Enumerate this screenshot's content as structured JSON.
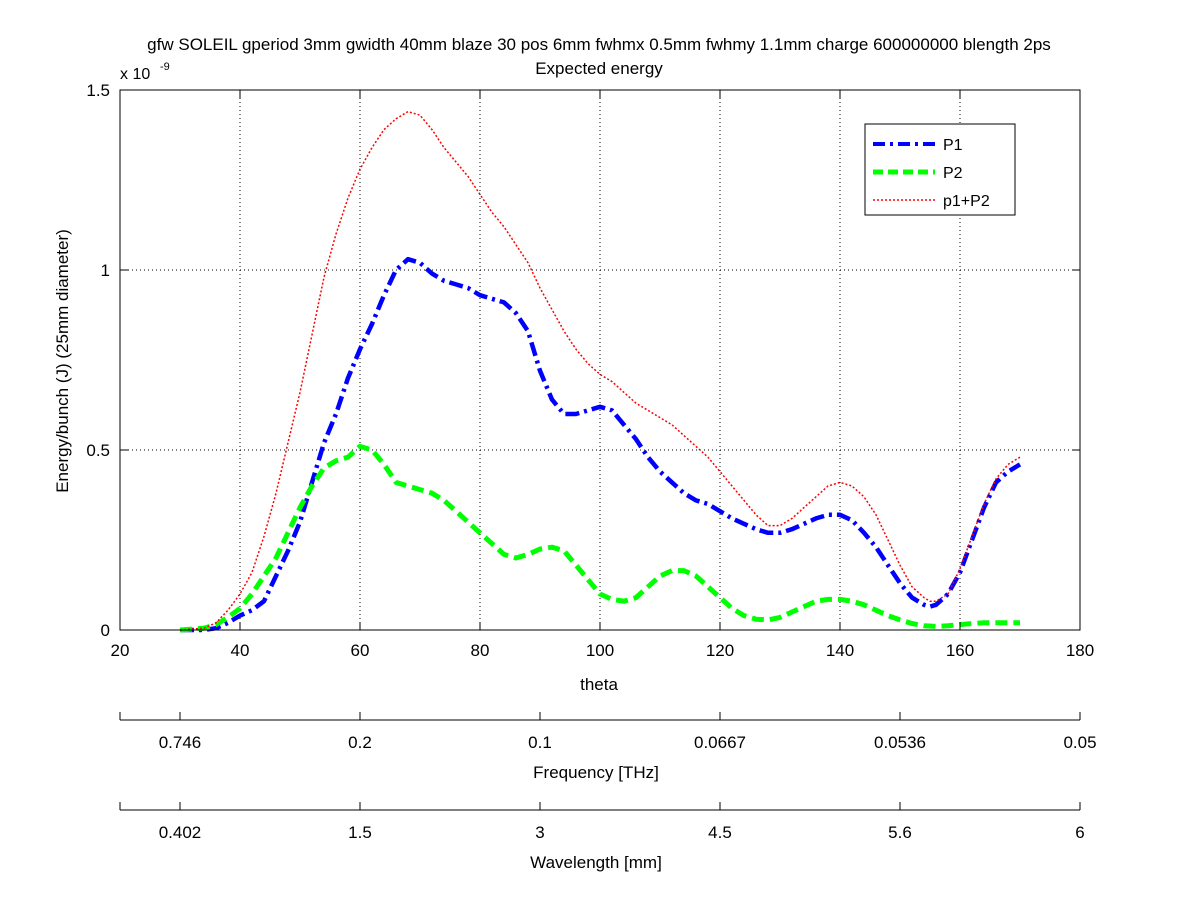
{
  "chart_data": {
    "type": "line",
    "title": "gfw SOLEIL gperiod 3mm gwidth 40mm blaze 30 pos 6mm fwhmx 0.5mm fwhmy 1.1mm charge 600000000 blength 2ps",
    "subtitle": "Expected energy",
    "xlabel": "theta",
    "ylabel": "Energy/bunch (J) (25mm diameter)",
    "y_exponent_label": "x 10",
    "y_exponent_power": "-9",
    "xlim": [
      20,
      180
    ],
    "ylim": [
      0,
      1.5
    ],
    "x_ticks": [
      20,
      40,
      60,
      80,
      100,
      120,
      140,
      160,
      180
    ],
    "y_ticks": [
      0,
      0.5,
      1,
      1.5
    ],
    "y_tick_labels": [
      "0",
      "0.5",
      "1",
      "1.5"
    ],
    "grid": true,
    "legend_position": "top-right",
    "series": [
      {
        "name": "P1",
        "color": "#0000ff",
        "style": "dash-dot",
        "x": [
          30,
          34,
          36,
          38,
          40,
          42,
          44,
          46,
          48,
          50,
          52,
          54,
          56,
          58,
          60,
          62,
          64,
          66,
          68,
          70,
          72,
          74,
          76,
          78,
          80,
          82,
          84,
          86,
          88,
          90,
          92,
          94,
          96,
          98,
          100,
          102,
          104,
          106,
          108,
          110,
          112,
          114,
          116,
          118,
          120,
          122,
          124,
          126,
          128,
          130,
          132,
          134,
          136,
          138,
          140,
          142,
          144,
          146,
          148,
          150,
          152,
          154,
          155,
          156,
          158,
          160,
          162,
          164,
          166,
          168,
          170
        ],
        "y": [
          0,
          0,
          0.005,
          0.02,
          0.04,
          0.055,
          0.08,
          0.15,
          0.22,
          0.3,
          0.41,
          0.52,
          0.6,
          0.7,
          0.78,
          0.85,
          0.93,
          1.0,
          1.03,
          1.02,
          0.99,
          0.97,
          0.96,
          0.95,
          0.93,
          0.92,
          0.91,
          0.88,
          0.83,
          0.72,
          0.64,
          0.6,
          0.6,
          0.61,
          0.62,
          0.61,
          0.57,
          0.53,
          0.48,
          0.44,
          0.41,
          0.38,
          0.36,
          0.35,
          0.33,
          0.31,
          0.295,
          0.28,
          0.27,
          0.27,
          0.28,
          0.295,
          0.31,
          0.32,
          0.32,
          0.305,
          0.27,
          0.23,
          0.18,
          0.13,
          0.09,
          0.07,
          0.065,
          0.07,
          0.1,
          0.16,
          0.25,
          0.34,
          0.41,
          0.44,
          0.46
        ]
      },
      {
        "name": "P2",
        "color": "#00ff00",
        "style": "dashed",
        "x": [
          30,
          34,
          36,
          38,
          40,
          42,
          44,
          46,
          48,
          50,
          52,
          54,
          56,
          58,
          60,
          62,
          64,
          66,
          68,
          70,
          72,
          74,
          76,
          78,
          80,
          82,
          84,
          86,
          88,
          90,
          92,
          94,
          96,
          98,
          100,
          102,
          104,
          106,
          108,
          110,
          112,
          114,
          116,
          118,
          120,
          122,
          124,
          126,
          128,
          130,
          132,
          134,
          136,
          138,
          140,
          142,
          144,
          146,
          148,
          150,
          152,
          154,
          156,
          158,
          160,
          162,
          164,
          166,
          168,
          170
        ],
        "y": [
          0,
          0.005,
          0.015,
          0.035,
          0.06,
          0.1,
          0.15,
          0.2,
          0.27,
          0.34,
          0.4,
          0.45,
          0.47,
          0.48,
          0.51,
          0.5,
          0.46,
          0.41,
          0.4,
          0.39,
          0.38,
          0.36,
          0.33,
          0.3,
          0.27,
          0.24,
          0.21,
          0.2,
          0.21,
          0.225,
          0.23,
          0.22,
          0.18,
          0.14,
          0.1,
          0.085,
          0.08,
          0.09,
          0.12,
          0.15,
          0.165,
          0.165,
          0.15,
          0.12,
          0.09,
          0.06,
          0.04,
          0.03,
          0.028,
          0.035,
          0.05,
          0.065,
          0.08,
          0.085,
          0.085,
          0.08,
          0.07,
          0.055,
          0.04,
          0.028,
          0.018,
          0.012,
          0.01,
          0.012,
          0.015,
          0.018,
          0.02,
          0.02,
          0.02,
          0.02
        ]
      },
      {
        "name": "p1+P2",
        "color": "#ff0000",
        "style": "dotted",
        "x": [
          30,
          34,
          36,
          38,
          40,
          42,
          44,
          46,
          48,
          50,
          52,
          54,
          56,
          58,
          60,
          62,
          64,
          66,
          68,
          70,
          72,
          74,
          76,
          78,
          80,
          82,
          84,
          86,
          88,
          90,
          92,
          94,
          96,
          98,
          100,
          102,
          104,
          106,
          108,
          110,
          112,
          114,
          116,
          118,
          120,
          122,
          124,
          126,
          128,
          130,
          132,
          134,
          136,
          138,
          140,
          142,
          144,
          146,
          148,
          150,
          152,
          154,
          155,
          156,
          158,
          160,
          162,
          164,
          166,
          168,
          170
        ],
        "y": [
          0,
          0.005,
          0.02,
          0.055,
          0.1,
          0.16,
          0.26,
          0.38,
          0.52,
          0.66,
          0.82,
          0.98,
          1.1,
          1.2,
          1.28,
          1.34,
          1.39,
          1.42,
          1.44,
          1.43,
          1.39,
          1.34,
          1.3,
          1.26,
          1.21,
          1.16,
          1.12,
          1.07,
          1.02,
          0.95,
          0.89,
          0.83,
          0.78,
          0.74,
          0.71,
          0.69,
          0.66,
          0.63,
          0.61,
          0.59,
          0.57,
          0.54,
          0.51,
          0.48,
          0.44,
          0.4,
          0.36,
          0.32,
          0.29,
          0.29,
          0.31,
          0.34,
          0.37,
          0.4,
          0.41,
          0.4,
          0.37,
          0.32,
          0.25,
          0.18,
          0.12,
          0.09,
          0.08,
          0.08,
          0.1,
          0.17,
          0.26,
          0.35,
          0.42,
          0.46,
          0.48
        ]
      }
    ],
    "secondary_axes": [
      {
        "label": "Frequency [THz]",
        "tick_positions": [
          30,
          60,
          90,
          120,
          150,
          180
        ],
        "tick_labels": [
          "0.746",
          "0.2",
          "0.1",
          "0.0667",
          "0.0536",
          "0.05"
        ]
      },
      {
        "label": "Wavelength [mm]",
        "tick_positions": [
          30,
          60,
          90,
          120,
          150,
          180
        ],
        "tick_labels": [
          "0.402",
          "1.5",
          "3",
          "4.5",
          "5.6",
          "6"
        ]
      }
    ]
  }
}
